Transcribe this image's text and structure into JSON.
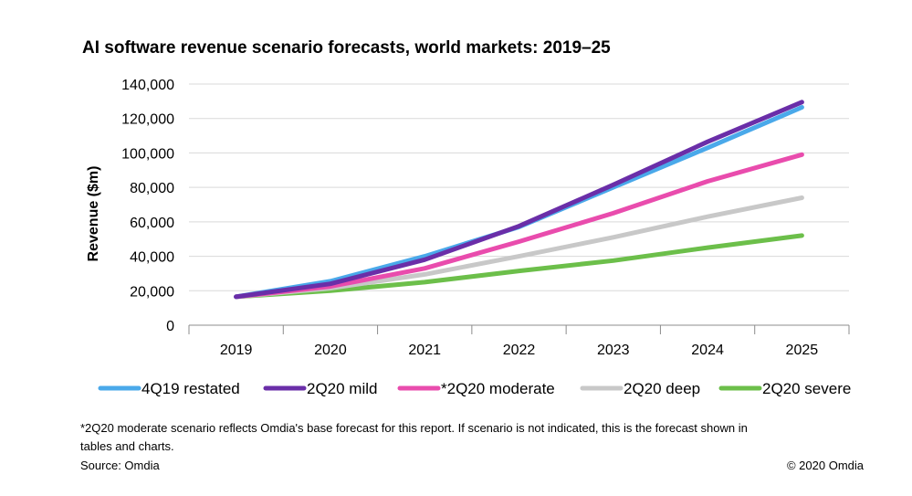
{
  "title": "AI software revenue scenario forecasts, world markets: 2019–25",
  "footnote_line1": "*2Q20 moderate scenario reflects Omdia's base forecast for this report.  If scenario is not indicated, this is the forecast shown in",
  "footnote_line2": "tables and charts.",
  "source": "Source:  Omdia",
  "copyright": "© 2020 Omdia",
  "chart_data": {
    "type": "line",
    "title": "AI software revenue scenario forecasts, world markets: 2019–25",
    "xlabel": "",
    "ylabel": "Revenue ($m)",
    "x": [
      "2019",
      "2020",
      "2021",
      "2022",
      "2023",
      "2024",
      "2025"
    ],
    "ylim": [
      0,
      140000
    ],
    "yticks": [
      0,
      20000,
      40000,
      60000,
      80000,
      100000,
      120000,
      140000
    ],
    "ytick_labels": [
      "0",
      "20,000",
      "40,000",
      "60,000",
      "80,000",
      "100,000",
      "120,000",
      "140,000"
    ],
    "grid": true,
    "legend_position": "bottom",
    "series": [
      {
        "name": "4Q19 restated",
        "color": "#4aa9ea",
        "values": [
          16500,
          25500,
          40000,
          57000,
          80000,
          103000,
          126500
        ]
      },
      {
        "name": "2Q20 mild",
        "color": "#6a2ea8",
        "values": [
          16500,
          24000,
          38000,
          57500,
          81500,
          106500,
          129500
        ]
      },
      {
        "name": "*2Q20 moderate",
        "color": "#e94cad",
        "values": [
          16500,
          22500,
          33000,
          48500,
          65000,
          83500,
          99000
        ]
      },
      {
        "name": "2Q20 deep",
        "color": "#c8c8c8",
        "values": [
          16500,
          21500,
          29500,
          40000,
          51000,
          63000,
          74000
        ]
      },
      {
        "name": "2Q20 severe",
        "color": "#6cbf4a",
        "values": [
          16500,
          20000,
          25000,
          31500,
          37500,
          45000,
          52000
        ]
      }
    ]
  }
}
